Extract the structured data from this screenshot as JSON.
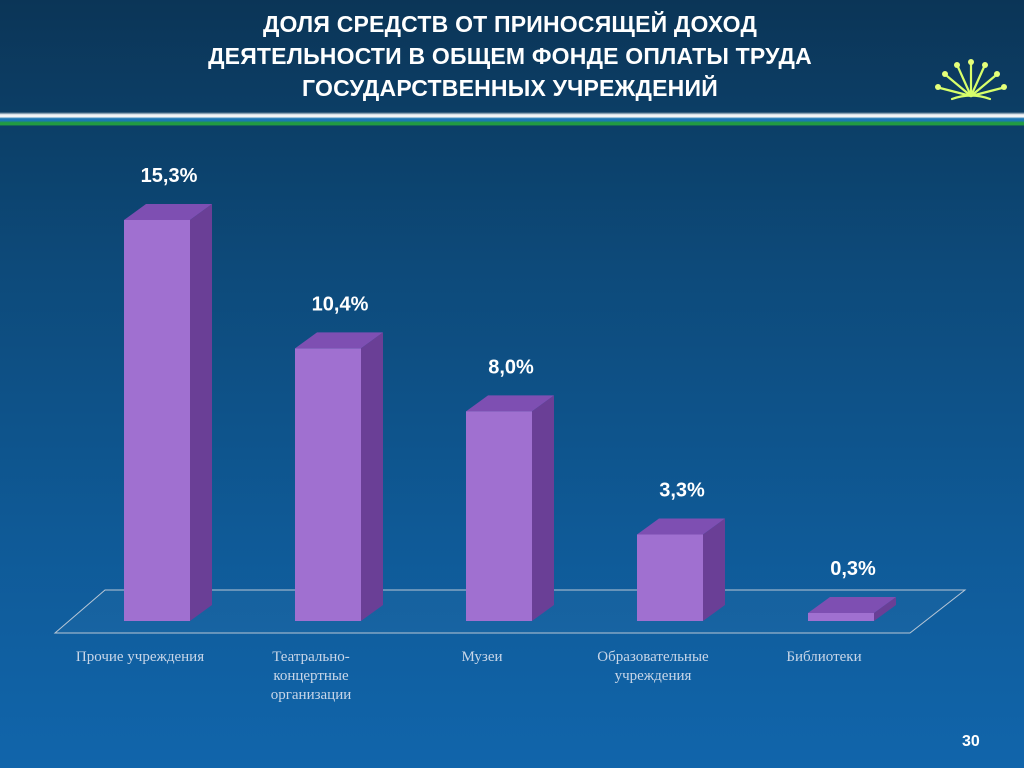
{
  "title_lines": [
    "ДОЛЯ СРЕДСТВ ОТ ПРИНОСЯЩЕЙ ДОХОД",
    "ДЕЯТЕЛЬНОСТИ В ОБЩЕМ ФОНДЕ ОПЛАТЫ ТРУДА",
    "ГОСУДАРСТВЕННЫХ УЧРЕЖДЕНИЙ"
  ],
  "page_number": "30",
  "logo_icon": "flower-emblem-icon",
  "chart_data": {
    "type": "bar",
    "style": "3d-column",
    "categories": [
      [
        "Прочие учреждения"
      ],
      [
        "Театрально-",
        "концертные",
        "организации"
      ],
      [
        "Музеи"
      ],
      [
        "Образовательные",
        "учреждения"
      ],
      [
        "Библиотеки"
      ]
    ],
    "values": [
      15.3,
      10.4,
      8.0,
      3.3,
      0.3
    ],
    "data_labels": [
      "15,3%",
      "10,4%",
      "8,0%",
      "3,3%",
      "0,3%"
    ],
    "unit": "%",
    "ylim": [
      0,
      16
    ],
    "grid": false,
    "legend": "none",
    "colors": {
      "bar_front": "#a070d0",
      "bar_side": "#6a3f96",
      "bar_top": "#7e4fb2",
      "label": "#ffffff",
      "category_label": "#c8d6e8"
    }
  }
}
